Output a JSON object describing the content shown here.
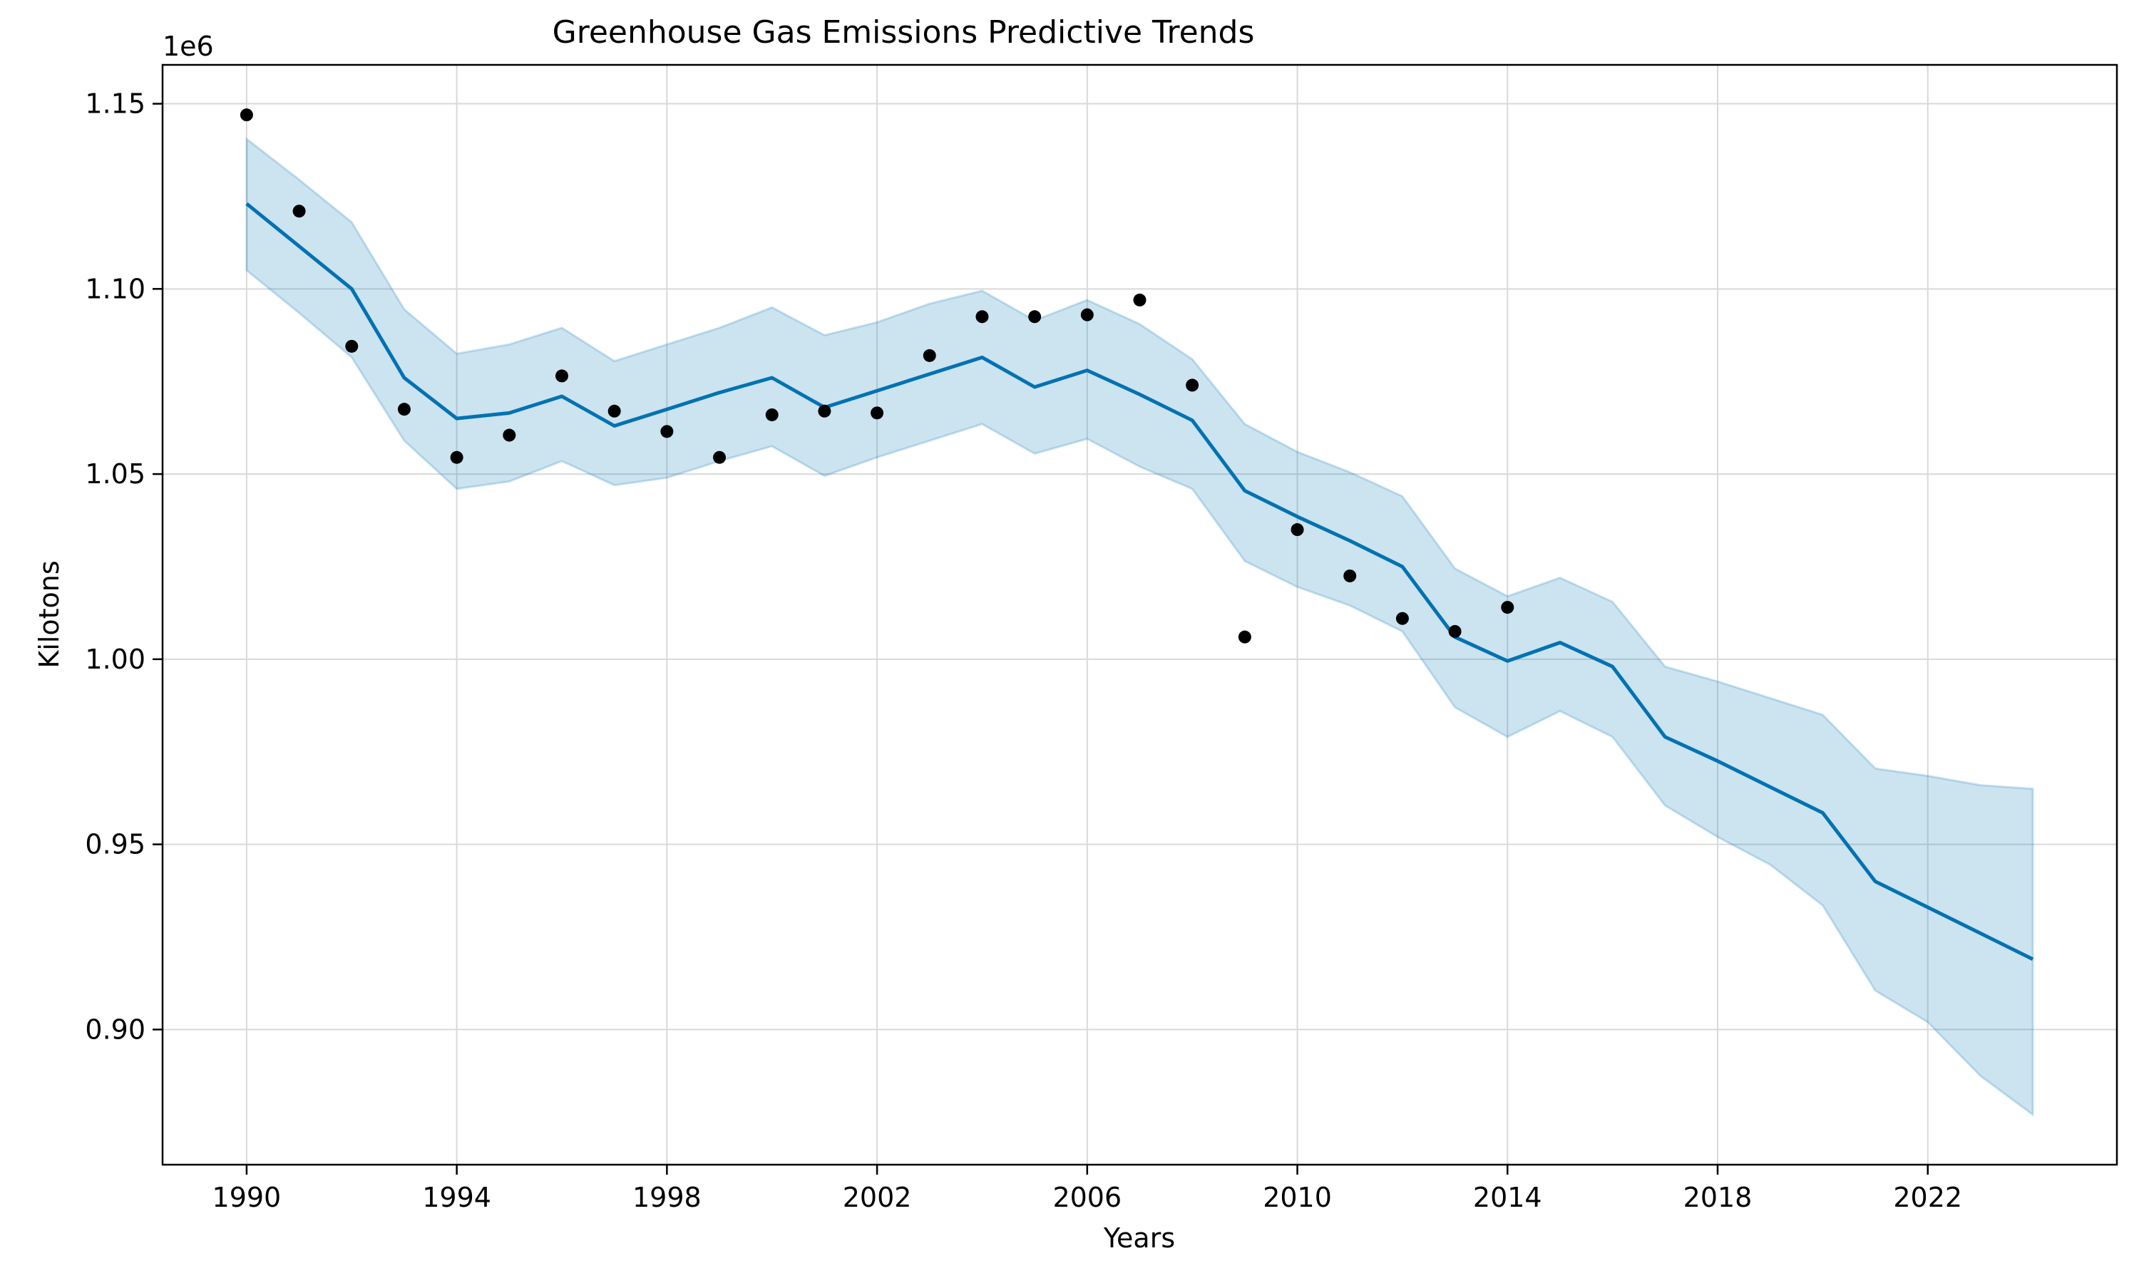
{
  "chart_data": {
    "type": "line",
    "title": "Greenhouse Gas Emissions Predictive Trends",
    "xlabel": "Years",
    "ylabel": "Kilotons",
    "y_offset_label": "1e6",
    "xlim": [
      1988.4,
      2025.6
    ],
    "ylim": [
      0.8635,
      1.1605
    ],
    "x_ticks": [
      1990,
      1994,
      1998,
      2002,
      2006,
      2010,
      2014,
      2018,
      2022
    ],
    "x_tick_labels": [
      "1990",
      "1994",
      "1998",
      "2002",
      "2006",
      "2010",
      "2014",
      "2018",
      "2022"
    ],
    "y_ticks": [
      0.9,
      0.95,
      1.0,
      1.05,
      1.1,
      1.15
    ],
    "y_tick_labels": [
      "0.90",
      "0.95",
      "1.00",
      "1.05",
      "1.10",
      "1.15"
    ],
    "grid": true,
    "colors": {
      "forecast": "#0072b2",
      "band": "#0072b2",
      "observed": "#000000",
      "grid": "#d9d9d9"
    },
    "observed": {
      "x": [
        1990,
        1991,
        1992,
        1993,
        1994,
        1995,
        1996,
        1997,
        1998,
        1999,
        2000,
        2001,
        2002,
        2003,
        2004,
        2005,
        2006,
        2007,
        2008,
        2009,
        2010,
        2011,
        2012,
        2013,
        2014
      ],
      "y": [
        1.147,
        1.121,
        1.0845,
        1.0675,
        1.0545,
        1.0605,
        1.0765,
        1.067,
        1.0615,
        1.0545,
        1.066,
        1.067,
        1.0665,
        1.082,
        1.0925,
        1.0925,
        1.093,
        1.097,
        1.074,
        1.006,
        1.035,
        1.0225,
        1.011,
        1.0075,
        1.014
      ]
    },
    "forecast": {
      "x": [
        1990,
        1991,
        1992,
        1993,
        1994,
        1995,
        1996,
        1997,
        1998,
        1999,
        2000,
        2001,
        2002,
        2003,
        2004,
        2005,
        2006,
        2007,
        2008,
        2009,
        2010,
        2011,
        2012,
        2013,
        2014,
        2015,
        2016,
        2017,
        2018,
        2019,
        2020,
        2021,
        2022,
        2023,
        2024
      ],
      "y": [
        1.123,
        1.1115,
        1.1,
        1.076,
        1.065,
        1.0665,
        1.071,
        1.063,
        1.0675,
        1.072,
        1.076,
        1.068,
        1.0725,
        1.077,
        1.0815,
        1.0735,
        1.078,
        1.0715,
        1.0645,
        1.0455,
        1.0385,
        1.032,
        1.025,
        1.006,
        0.9995,
        1.0045,
        0.998,
        0.979,
        0.9725,
        0.9655,
        0.9585,
        0.94,
        0.933,
        0.926,
        0.919
      ]
    },
    "upper": {
      "x": [
        1990,
        1991,
        1992,
        1993,
        1994,
        1995,
        1996,
        1997,
        1998,
        1999,
        2000,
        2001,
        2002,
        2003,
        2004,
        2005,
        2006,
        2007,
        2008,
        2009,
        2010,
        2011,
        2012,
        2013,
        2014,
        2015,
        2016,
        2017,
        2018,
        2019,
        2020,
        2021,
        2022,
        2023,
        2024
      ],
      "y": [
        1.1405,
        1.1295,
        1.118,
        1.0945,
        1.0825,
        1.085,
        1.0895,
        1.0805,
        1.085,
        1.0895,
        1.095,
        1.0875,
        1.091,
        1.096,
        1.0995,
        1.0915,
        1.097,
        1.0905,
        1.081,
        1.0635,
        1.056,
        1.0505,
        1.044,
        1.0245,
        1.017,
        1.022,
        1.0155,
        0.998,
        0.994,
        0.9895,
        0.985,
        0.9705,
        0.9685,
        0.966,
        0.965
      ]
    },
    "lower": {
      "x": [
        1990,
        1991,
        1992,
        1993,
        1994,
        1995,
        1996,
        1997,
        1998,
        1999,
        2000,
        2001,
        2002,
        2003,
        2004,
        2005,
        2006,
        2007,
        2008,
        2009,
        2010,
        2011,
        2012,
        2013,
        2014,
        2015,
        2016,
        2017,
        2018,
        2019,
        2020,
        2021,
        2022,
        2023,
        2024
      ],
      "y": [
        1.105,
        1.0935,
        1.0815,
        1.059,
        1.046,
        1.048,
        1.0535,
        1.047,
        1.049,
        1.0535,
        1.0575,
        1.0495,
        1.0545,
        1.059,
        1.0635,
        1.0555,
        1.0595,
        1.052,
        1.046,
        1.0265,
        1.0195,
        1.0145,
        1.0075,
        0.987,
        0.979,
        0.986,
        0.979,
        0.9605,
        0.952,
        0.9445,
        0.9335,
        0.9105,
        0.902,
        0.8875,
        0.877
      ]
    }
  }
}
